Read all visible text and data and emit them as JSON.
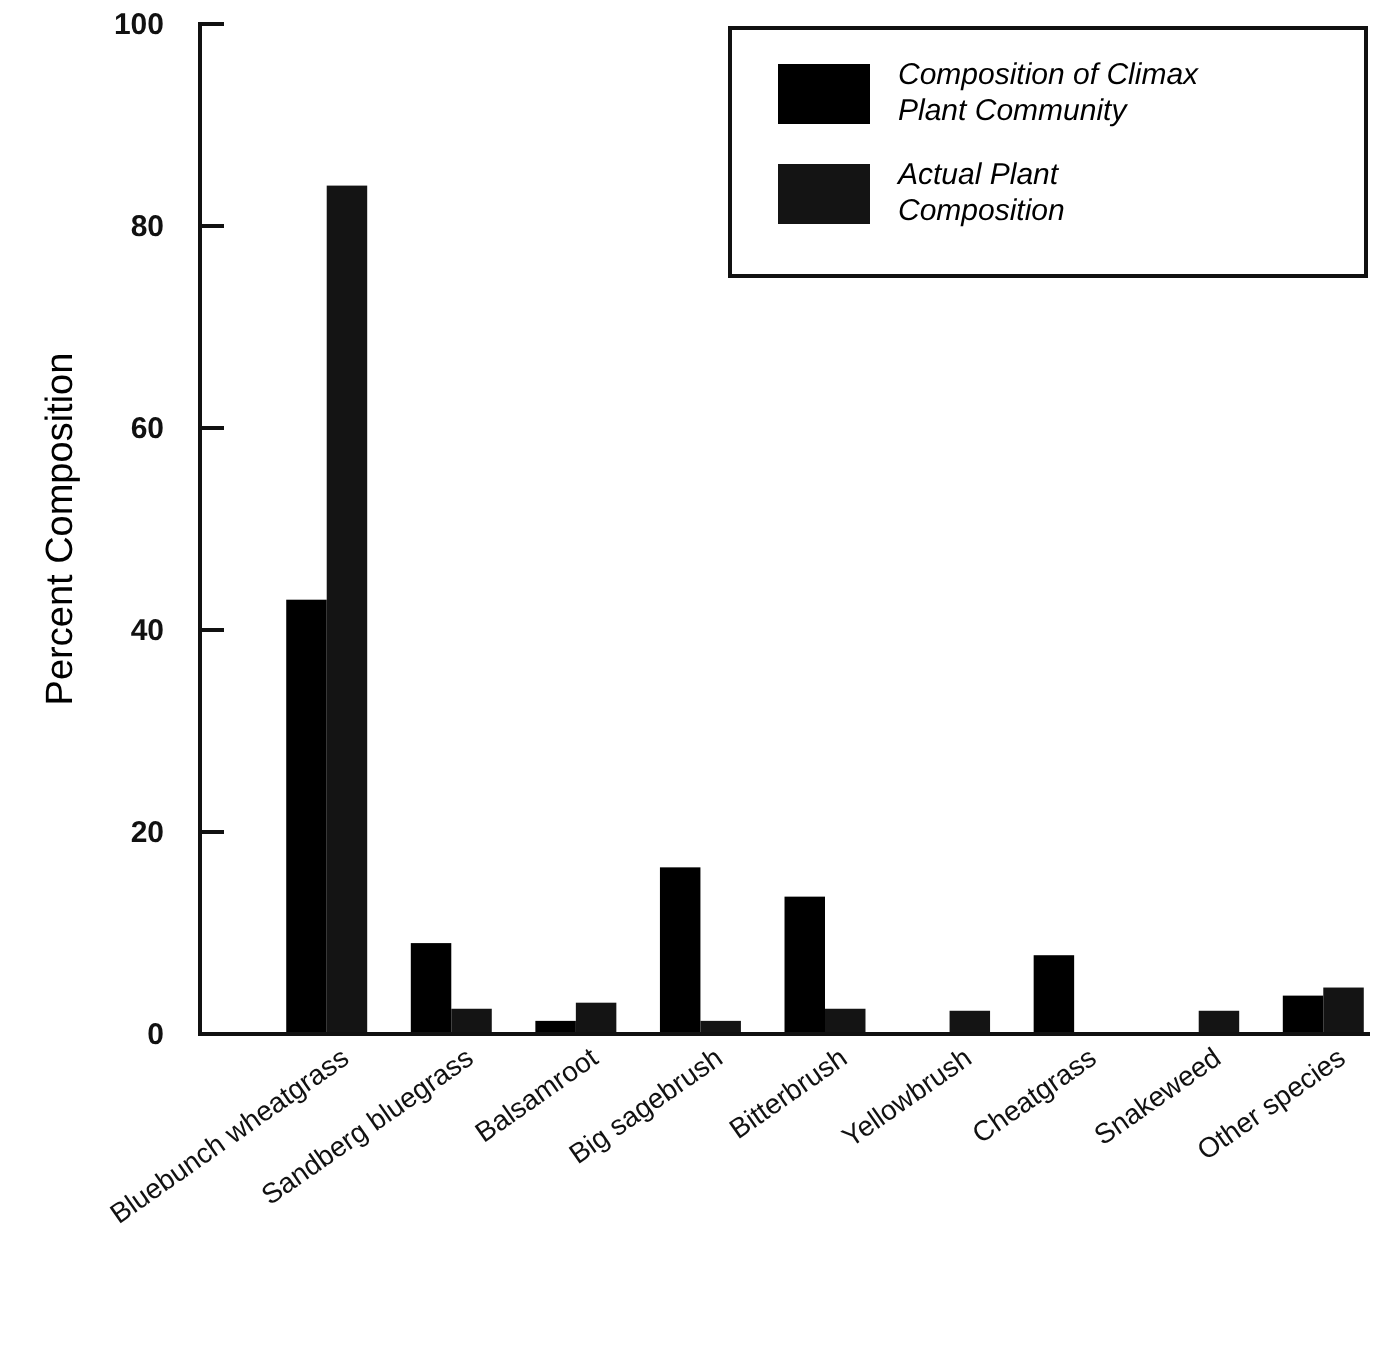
{
  "chart_data": {
    "type": "bar",
    "ylabel": "Percent Composition",
    "categories": [
      "Bluebunch wheatgrass",
      "Sandberg bluegrass",
      "Balsamroot",
      "Big sagebrush",
      "Bitterbrush",
      "Yellowbrush",
      "Cheatgrass",
      "Snakeweed",
      "Other species"
    ],
    "series": [
      {
        "name": "Composition of Climax Plant Community",
        "color": "#000000",
        "values": [
          43,
          9,
          1.3,
          16.5,
          13.6,
          0,
          7.8,
          0,
          3.8
        ]
      },
      {
        "name": "Actual Plant Composition",
        "color": "#141414",
        "values": [
          84,
          2.5,
          3.1,
          1.3,
          2.5,
          2.3,
          0,
          2.3,
          4.6
        ]
      }
    ],
    "ylim": [
      0,
      100
    ],
    "yticks": [
      0,
      20,
      40,
      60,
      80,
      100
    ],
    "grid": false,
    "legend": "top right"
  }
}
